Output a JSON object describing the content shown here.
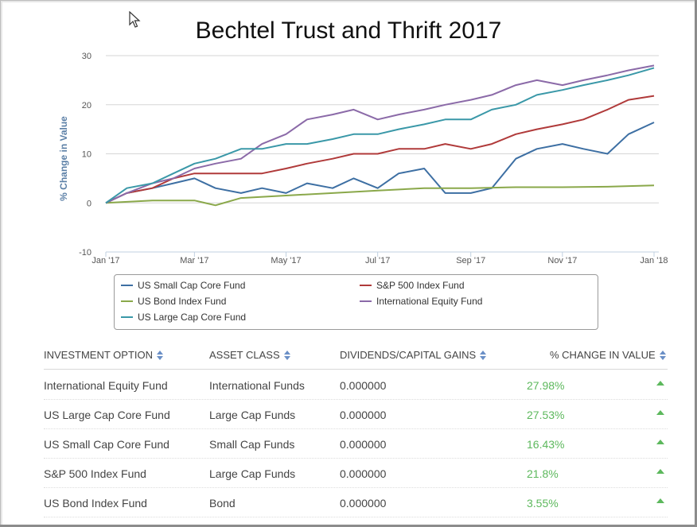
{
  "title": "Bechtel Trust and Thrift 2017",
  "chart_data": {
    "type": "line",
    "title": "Bechtel Trust and Thrift 2017",
    "ylabel": "% Change in Value",
    "xlabel": "",
    "ylim": [
      -10,
      30
    ],
    "yticks": [
      30,
      20,
      10,
      0,
      -10
    ],
    "xlim": [
      "2017-01-01",
      "2018-01-01"
    ],
    "xticks": [
      {
        "label": "Jan '17",
        "date": "2017-01-01"
      },
      {
        "label": "Mar '17",
        "date": "2017-03-01"
      },
      {
        "label": "May '17",
        "date": "2017-05-01"
      },
      {
        "label": "Jul '17",
        "date": "2017-07-01"
      },
      {
        "label": "Sep '17",
        "date": "2017-09-01"
      },
      {
        "label": "Nov '17",
        "date": "2017-11-01"
      },
      {
        "label": "Jan '18",
        "date": "2018-01-01"
      }
    ],
    "grid": "horizontal",
    "legend_position": "bottom",
    "series": [
      {
        "name": "US Small Cap Core Fund",
        "color": "#3d6fa3",
        "dates": [
          "2017-01-01",
          "2017-01-15",
          "2017-02-01",
          "2017-02-15",
          "2017-03-01",
          "2017-03-15",
          "2017-04-01",
          "2017-04-15",
          "2017-05-01",
          "2017-05-15",
          "2017-06-01",
          "2017-06-15",
          "2017-07-01",
          "2017-07-15",
          "2017-08-01",
          "2017-08-15",
          "2017-09-01",
          "2017-09-15",
          "2017-10-01",
          "2017-10-15",
          "2017-11-01",
          "2017-11-15",
          "2017-12-01",
          "2017-12-15",
          "2018-01-01"
        ],
        "values": [
          0,
          2,
          3,
          4,
          5,
          3,
          2,
          3,
          2,
          4,
          3,
          5,
          3,
          6,
          7,
          2,
          2,
          3,
          9,
          11,
          12,
          11,
          10,
          14,
          16.4
        ]
      },
      {
        "name": "S&P 500 Index Fund",
        "color": "#b03a3a",
        "dates": [
          "2017-01-01",
          "2017-01-15",
          "2017-02-01",
          "2017-02-15",
          "2017-03-01",
          "2017-03-15",
          "2017-04-01",
          "2017-04-15",
          "2017-05-01",
          "2017-05-15",
          "2017-06-01",
          "2017-06-15",
          "2017-07-01",
          "2017-07-15",
          "2017-08-01",
          "2017-08-15",
          "2017-09-01",
          "2017-09-15",
          "2017-10-01",
          "2017-10-15",
          "2017-11-01",
          "2017-11-15",
          "2017-12-01",
          "2017-12-15",
          "2018-01-01"
        ],
        "values": [
          0,
          2,
          3,
          5,
          6,
          6,
          6,
          6,
          7,
          8,
          9,
          10,
          10,
          11,
          11,
          12,
          11,
          12,
          14,
          15,
          16,
          17,
          19,
          21,
          21.8
        ]
      },
      {
        "name": "US Bond Index Fund",
        "color": "#8aa84a",
        "dates": [
          "2017-01-01",
          "2017-02-01",
          "2017-03-01",
          "2017-03-15",
          "2017-04-01",
          "2017-05-01",
          "2017-06-01",
          "2017-07-01",
          "2017-08-01",
          "2017-09-01",
          "2017-10-01",
          "2017-11-01",
          "2017-12-01",
          "2018-01-01"
        ],
        "values": [
          0,
          0.5,
          0.5,
          -0.5,
          1,
          1.5,
          2,
          2.5,
          3,
          3,
          3.2,
          3.2,
          3.3,
          3.55
        ]
      },
      {
        "name": "International Equity Fund",
        "color": "#8b6aa8",
        "dates": [
          "2017-01-01",
          "2017-01-15",
          "2017-02-01",
          "2017-02-15",
          "2017-03-01",
          "2017-03-15",
          "2017-04-01",
          "2017-04-15",
          "2017-05-01",
          "2017-05-15",
          "2017-06-01",
          "2017-06-15",
          "2017-07-01",
          "2017-07-15",
          "2017-08-01",
          "2017-08-15",
          "2017-09-01",
          "2017-09-15",
          "2017-10-01",
          "2017-10-15",
          "2017-11-01",
          "2017-11-15",
          "2017-12-01",
          "2017-12-15",
          "2018-01-01"
        ],
        "values": [
          0,
          2,
          4,
          5,
          7,
          8,
          9,
          12,
          14,
          17,
          18,
          19,
          17,
          18,
          19,
          20,
          21,
          22,
          24,
          25,
          24,
          25,
          26,
          27,
          28
        ]
      },
      {
        "name": "US Large Cap Core Fund",
        "color": "#3a98a8",
        "dates": [
          "2017-01-01",
          "2017-01-15",
          "2017-02-01",
          "2017-02-15",
          "2017-03-01",
          "2017-03-15",
          "2017-04-01",
          "2017-04-15",
          "2017-05-01",
          "2017-05-15",
          "2017-06-01",
          "2017-06-15",
          "2017-07-01",
          "2017-07-15",
          "2017-08-01",
          "2017-08-15",
          "2017-09-01",
          "2017-09-15",
          "2017-10-01",
          "2017-10-15",
          "2017-11-01",
          "2017-11-15",
          "2017-12-01",
          "2017-12-15",
          "2018-01-01"
        ],
        "values": [
          0,
          3,
          4,
          6,
          8,
          9,
          11,
          11,
          12,
          12,
          13,
          14,
          14,
          15,
          16,
          17,
          17,
          19,
          20,
          22,
          23,
          24,
          25,
          26,
          27.5
        ]
      }
    ]
  },
  "table": {
    "headers": [
      "INVESTMENT OPTION",
      "ASSET CLASS",
      "DIVIDENDS/CAPITAL GAINS",
      "% CHANGE IN VALUE"
    ],
    "rows": [
      {
        "option": "International Equity Fund",
        "asset_class": "International Funds",
        "dividends": "0.000000",
        "change": "27.98%"
      },
      {
        "option": "US Large Cap Core Fund",
        "asset_class": "Large Cap Funds",
        "dividends": "0.000000",
        "change": "27.53%"
      },
      {
        "option": "US Small Cap Core Fund",
        "asset_class": "Small Cap Funds",
        "dividends": "0.000000",
        "change": "16.43%"
      },
      {
        "option": "S&P 500 Index Fund",
        "asset_class": "Large Cap Funds",
        "dividends": "0.000000",
        "change": "21.8%"
      },
      {
        "option": "US Bond Index Fund",
        "asset_class": "Bond",
        "dividends": "0.000000",
        "change": "3.55%"
      }
    ],
    "trend_icon": "triangle-up-icon",
    "positive_color": "#5cb85c",
    "sort_icon": "sort-arrows-icon"
  }
}
